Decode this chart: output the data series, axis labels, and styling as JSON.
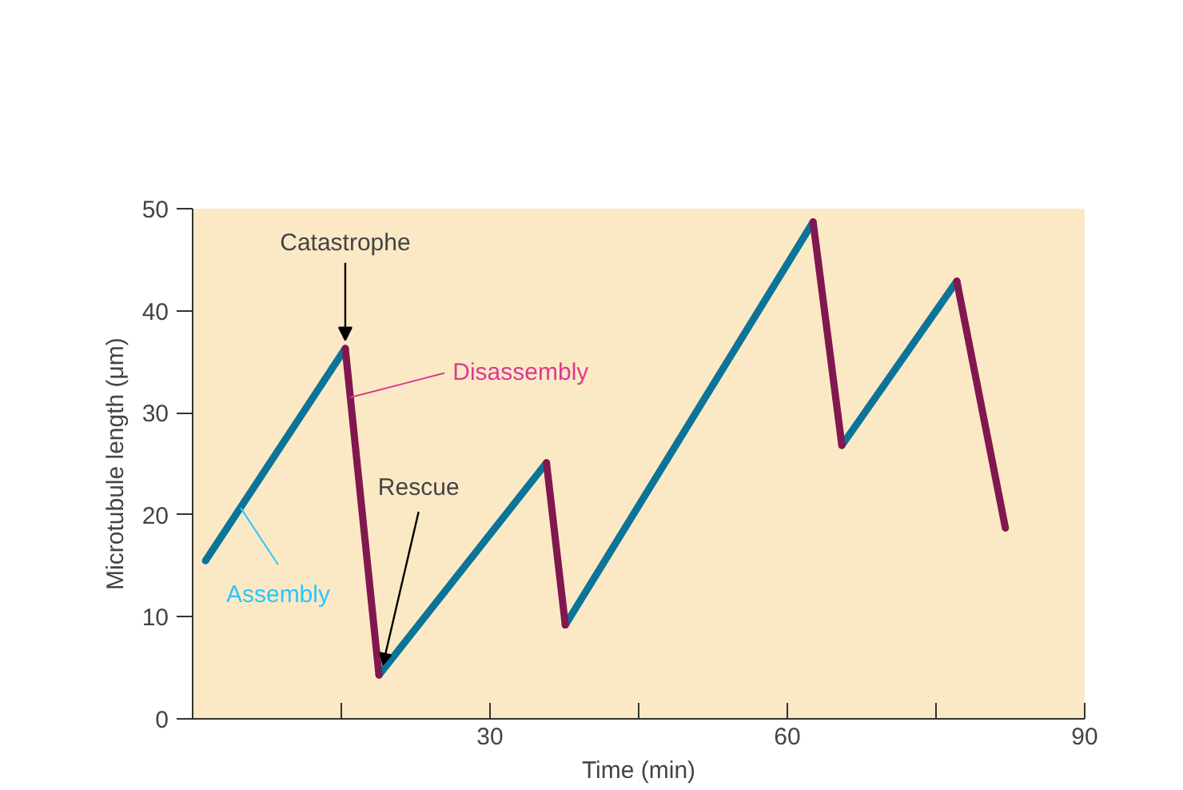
{
  "chart_data": {
    "type": "line",
    "xlabel": "Time (min)",
    "ylabel": "Microtubule length (μm)",
    "xlim": [
      0,
      90
    ],
    "ylim": [
      0,
      50
    ],
    "xticks": [
      {
        "value": 15,
        "label": null
      },
      30,
      {
        "value": 45,
        "label": null
      },
      60,
      {
        "value": 75,
        "label": null
      },
      90
    ],
    "yticks": [
      0,
      10,
      20,
      30,
      40,
      50
    ],
    "grid": false,
    "marker": "none",
    "line_style": "solid",
    "series": [
      {
        "name": "Assembly",
        "color": "#0b7498",
        "x": [
          1.3,
          15.4,
          null,
          18.8,
          35.7,
          null,
          37.6,
          62.6,
          null,
          65.5,
          77.1
        ],
        "values": [
          15.5,
          36.3,
          null,
          4.3,
          25.1,
          null,
          9.2,
          48.7,
          null,
          26.8,
          42.9
        ]
      },
      {
        "name": "Disassembly",
        "color": "#82174f",
        "x": [
          15.4,
          18.8,
          null,
          35.7,
          37.6,
          null,
          62.6,
          65.5,
          null,
          77.1,
          82.0
        ],
        "values": [
          36.3,
          4.3,
          null,
          25.1,
          9.2,
          null,
          48.7,
          26.8,
          null,
          42.9,
          18.7
        ]
      }
    ],
    "annotations": [
      {
        "text": "Catastrophe",
        "x": 15.4,
        "y": 36.3
      },
      {
        "text": "Rescue",
        "x": 18.8,
        "y": 4.3
      }
    ]
  }
}
